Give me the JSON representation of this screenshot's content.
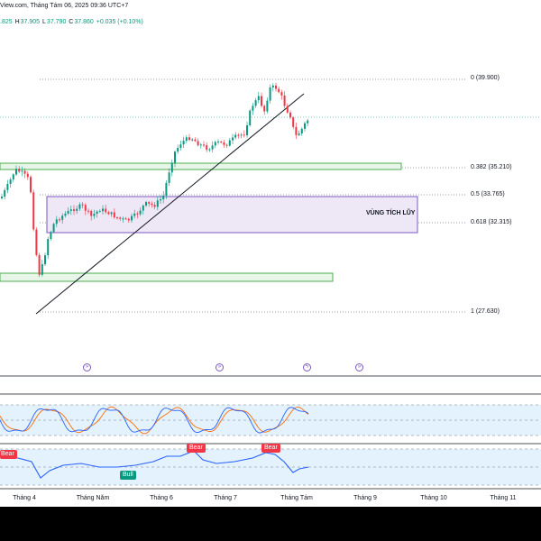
{
  "header": {
    "source_text": "View.com, Tháng Tám 06, 2025 09:36 UTC+7"
  },
  "ohlc": {
    "open": ".825",
    "high_key": "H",
    "high": "37.905",
    "low_key": "L",
    "low": "37.790",
    "close_key": "C",
    "close": "37.860",
    "change": "+0.035 (+0.10%)"
  },
  "fib_levels": [
    {
      "label": "0 (39.900)",
      "value": 39.9
    },
    {
      "label": "0.382 (35.210)",
      "value": 35.21
    },
    {
      "label": "0.5 (33.765)",
      "value": 33.765
    },
    {
      "label": "0.618 (32.315)",
      "value": 32.315
    },
    {
      "label": "1 (27.630)",
      "value": 27.63
    }
  ],
  "zone_label": "VÙNG TÍCH LŨY",
  "indicator_badges": [
    {
      "text": "Bear",
      "kind": "bear"
    },
    {
      "text": "Bull",
      "kind": "bull"
    },
    {
      "text": "Bear",
      "kind": "bear"
    },
    {
      "text": "Bear",
      "kind": "bear"
    }
  ],
  "x_axis": [
    "Tháng 4",
    "Tháng Năm",
    "Tháng 6",
    "Tháng 7",
    "Tháng Tám",
    "Tháng 9",
    "Tháng 10",
    "Tháng 11"
  ],
  "events": [
    {
      "icon": "fast-forward-icon"
    },
    {
      "icon": "fast-forward-icon"
    },
    {
      "icon": "lightning-icon"
    },
    {
      "icon": "fast-forward-icon"
    }
  ],
  "colors": {
    "up": "#089981",
    "down": "#f23645",
    "zone_fill": "#ede7f6",
    "zone_border": "#7e57c2",
    "sr_fill": "#e8f5e9",
    "sr_border": "#4caf50",
    "stoch_k": "#2962ff",
    "stoch_d": "#ff6d00",
    "rsi_line": "#2962ff"
  }
}
